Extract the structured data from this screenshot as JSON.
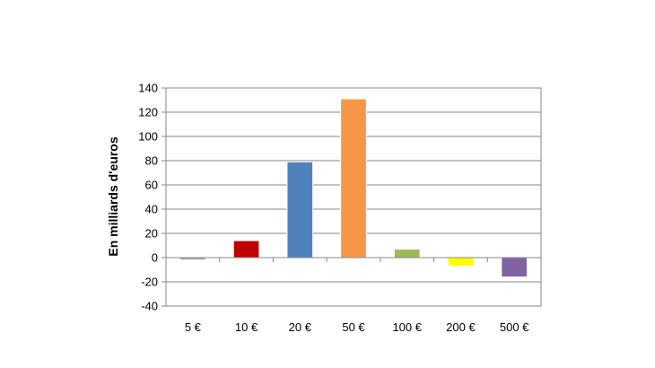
{
  "chart_data": {
    "type": "bar",
    "categories": [
      "5 €",
      "10 €",
      "20 €",
      "50 €",
      "100 €",
      "200 €",
      "500 €"
    ],
    "values": [
      -2,
      14,
      79,
      131,
      7,
      -7,
      -16
    ],
    "colors": [
      "#a6a6a6",
      "#c00000",
      "#4f81bd",
      "#f79646",
      "#9bbb59",
      "#ffff00",
      "#8064a2"
    ],
    "ylabel": "En milliards d'euros",
    "ylim": [
      -40,
      140
    ],
    "yticks": [
      -40,
      -20,
      0,
      20,
      40,
      60,
      80,
      100,
      120,
      140
    ],
    "grid": true,
    "legend": "none"
  }
}
